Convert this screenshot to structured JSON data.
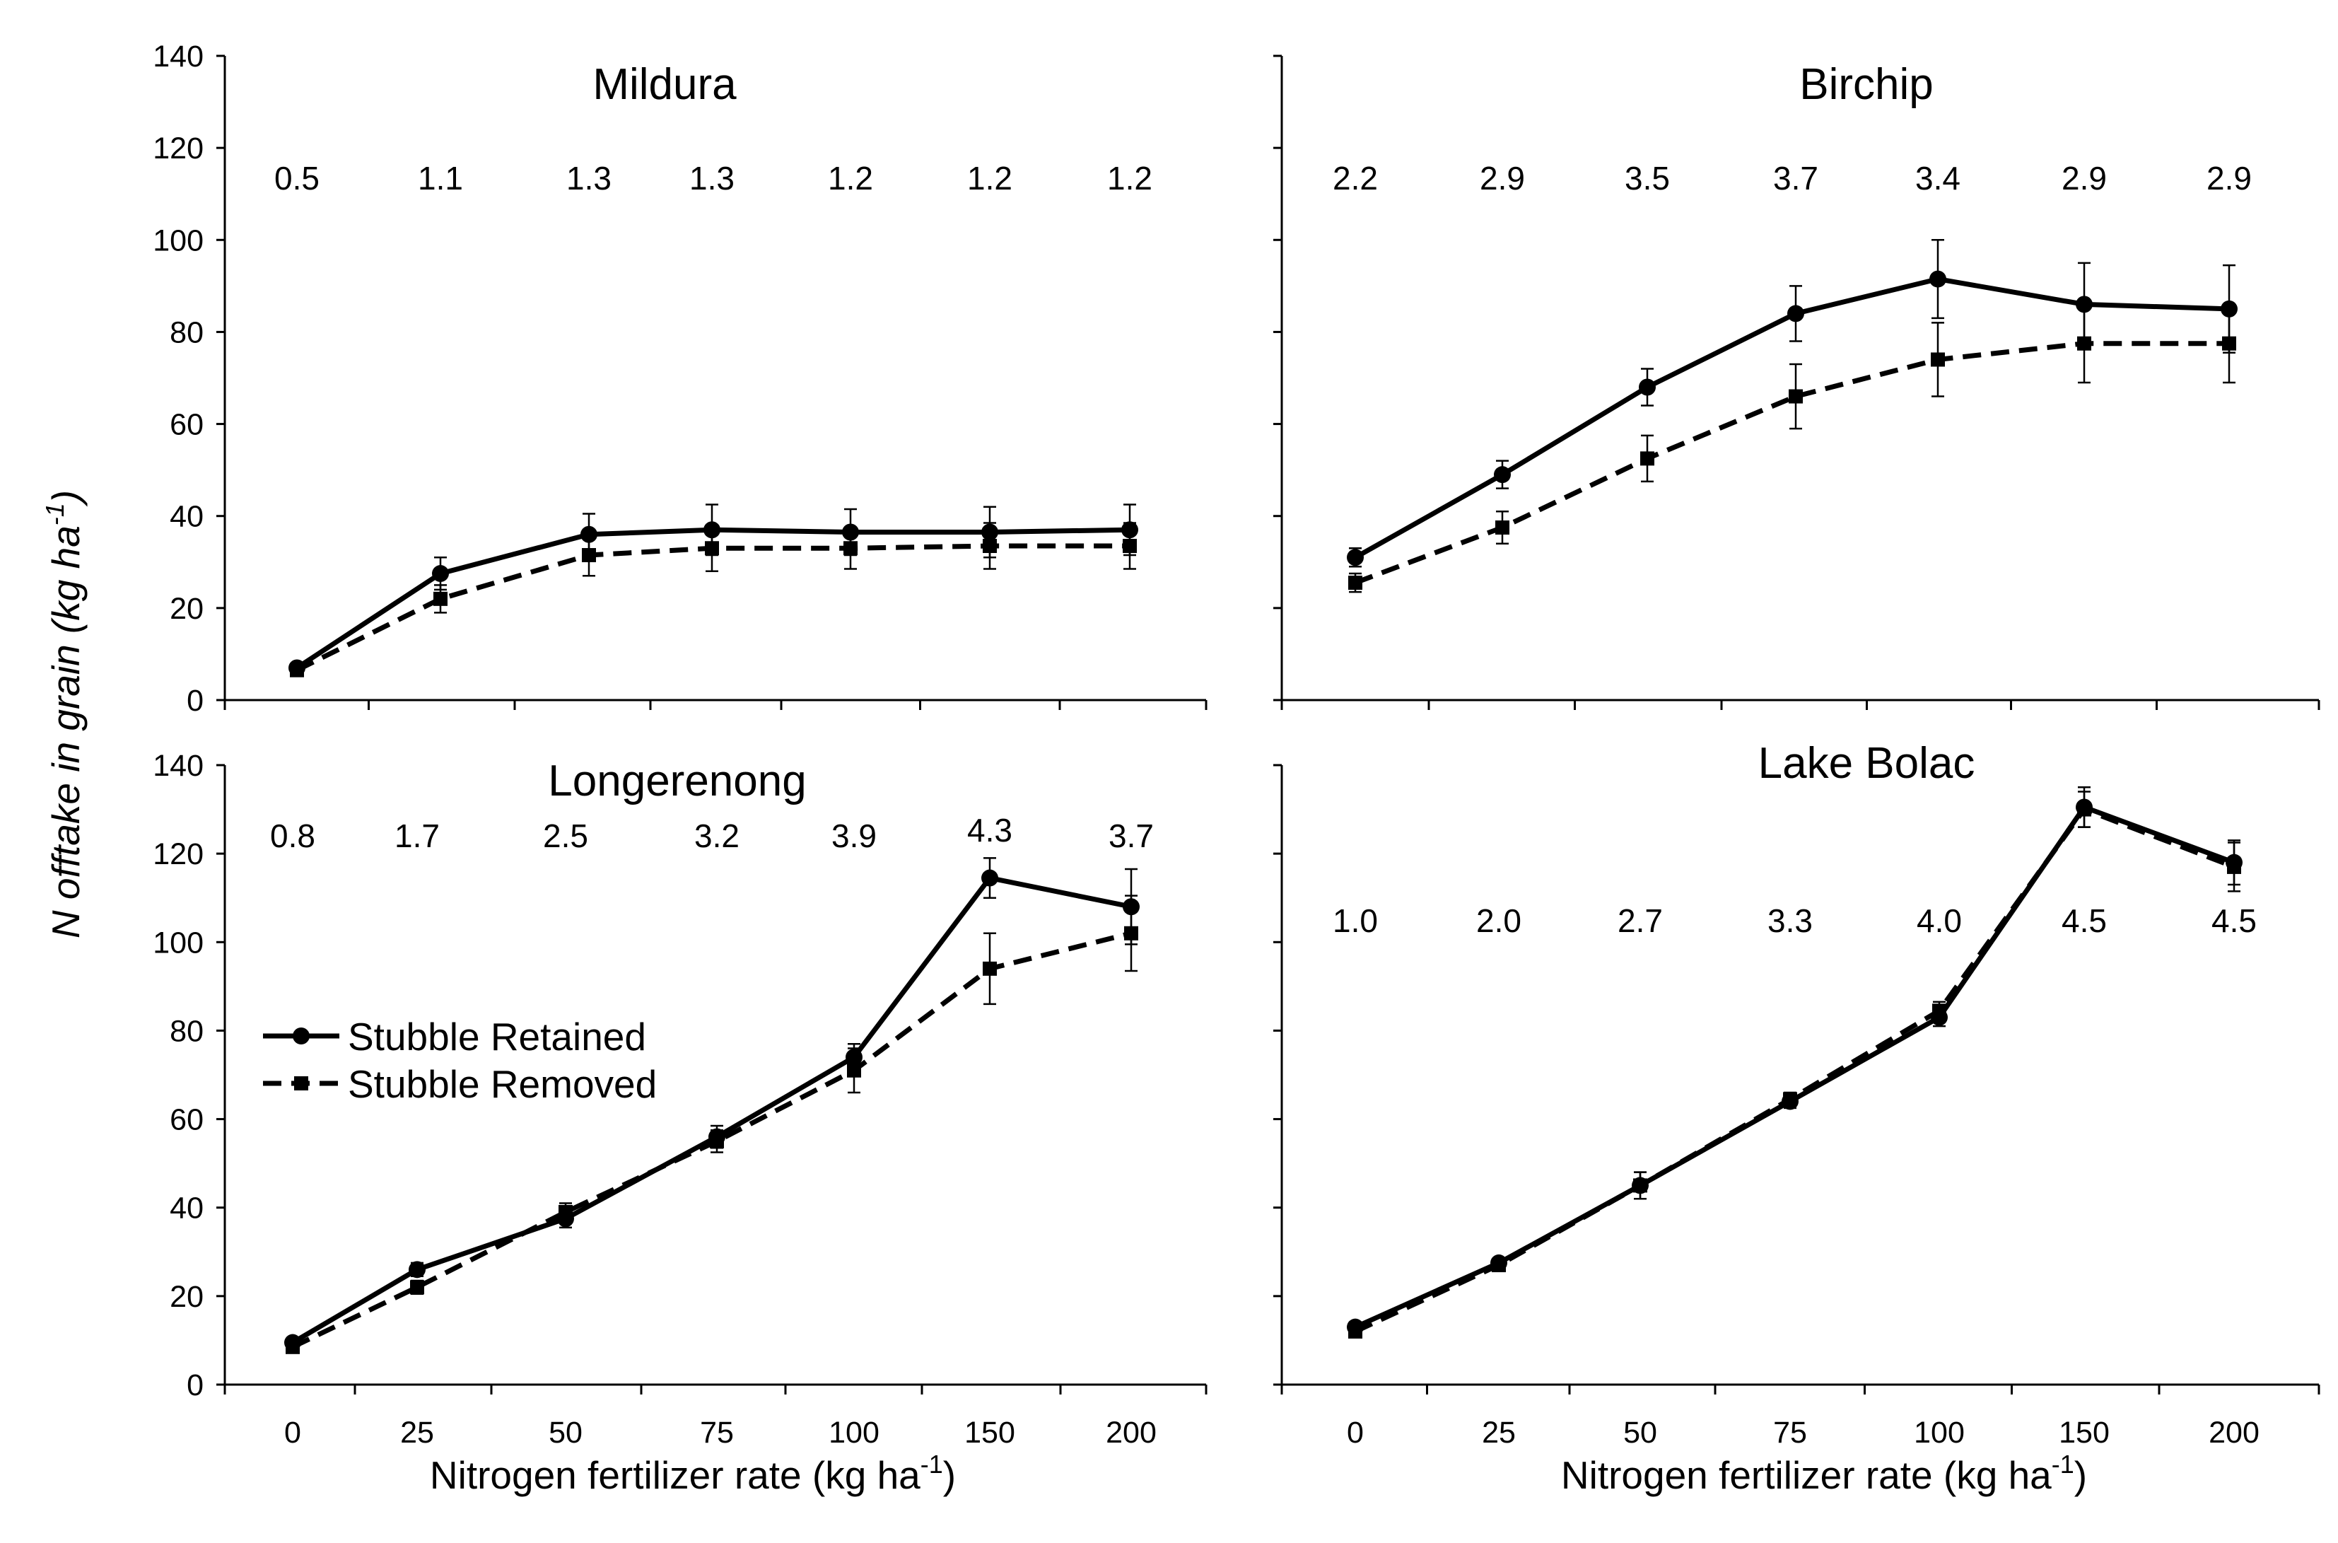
{
  "ylabel": {
    "main": "N offtake in grain (kg ha",
    "sup": "-1",
    "close": ")"
  },
  "xlabel": {
    "main": "Nitrogen  fertilizer  rate  (kg  ha",
    "sup": "-1",
    "close": ")"
  },
  "legend": {
    "retained": "Stubble Retained",
    "removed": "Stubble Removed"
  },
  "chart_data": [
    {
      "type": "line",
      "title": "Mildura",
      "categories": [
        "0",
        "25",
        "50",
        "75",
        "100",
        "150",
        "200"
      ],
      "ylim": [
        0,
        140
      ],
      "yticks": [
        "0",
        "20",
        "40",
        "60",
        "80",
        "100",
        "120",
        "140"
      ],
      "annotations": [
        "0.5",
        "1.1",
        "1.3",
        "1.3",
        "1.2",
        "1.2",
        "1.2"
      ],
      "series": [
        {
          "name": "Stubble Retained",
          "values": [
            7,
            27.5,
            36,
            37,
            36.5,
            36.5,
            37
          ],
          "errors": [
            1,
            3.5,
            4.5,
            5.5,
            5,
            5.5,
            5.5
          ]
        },
        {
          "name": "Stubble Removed",
          "values": [
            6.5,
            22,
            31.5,
            33,
            33,
            33.5,
            33.5
          ],
          "errors": [
            1,
            3,
            4.5,
            5,
            4.5,
            5,
            5
          ]
        }
      ]
    },
    {
      "type": "line",
      "title": "Birchip",
      "categories": [
        "0",
        "25",
        "50",
        "75",
        "100",
        "150",
        "200"
      ],
      "ylim": [
        0,
        140
      ],
      "yticks": [],
      "annotations": [
        "2.2",
        "2.9",
        "3.5",
        "3.7",
        "3.4",
        "2.9",
        "2.9"
      ],
      "series": [
        {
          "name": "Stubble Retained",
          "values": [
            31,
            49,
            68,
            84,
            91.5,
            86,
            85
          ],
          "errors": [
            2,
            3,
            4,
            6,
            8.5,
            9,
            9.5
          ]
        },
        {
          "name": "Stubble Removed",
          "values": [
            25.5,
            37.5,
            52.5,
            66,
            74,
            77.5,
            77.5
          ],
          "errors": [
            2,
            3.5,
            5,
            7,
            8,
            8.5,
            8.5
          ]
        }
      ]
    },
    {
      "type": "line",
      "title": "Longerenong",
      "categories": [
        "0",
        "25",
        "50",
        "75",
        "100",
        "150",
        "200"
      ],
      "ylim": [
        0,
        140
      ],
      "yticks": [
        "0",
        "20",
        "40",
        "60",
        "80",
        "100",
        "120",
        "140"
      ],
      "annotations": [
        "0.8",
        "1.7",
        "2.5",
        "3.2",
        "3.9",
        "4.3",
        "3.7"
      ],
      "series": [
        {
          "name": "Stubble Retained",
          "values": [
            9.5,
            26,
            37.5,
            56,
            74,
            114.5,
            108
          ],
          "errors": [
            1,
            1.5,
            2,
            2.5,
            3,
            4.5,
            8.5
          ]
        },
        {
          "name": "Stubble Removed",
          "values": [
            8.5,
            22,
            39,
            55,
            71,
            94,
            102
          ],
          "errors": [
            1,
            1.5,
            2,
            2.5,
            5,
            8,
            8.5
          ]
        }
      ]
    },
    {
      "type": "line",
      "title": "Lake Bolac",
      "categories": [
        "0",
        "25",
        "50",
        "75",
        "100",
        "150",
        "200"
      ],
      "ylim": [
        0,
        140
      ],
      "yticks": [],
      "annotations": [
        "1.0",
        "2.0",
        "2.7",
        "3.3",
        "4.0",
        "4.5",
        "4.5"
      ],
      "series": [
        {
          "name": "Stubble Retained",
          "values": [
            13,
            27.5,
            45,
            64,
            83,
            130.5,
            118
          ],
          "errors": [
            1,
            1,
            3,
            1.5,
            2,
            4.5,
            5
          ]
        },
        {
          "name": "Stubble Removed",
          "values": [
            12,
            27,
            45,
            64.5,
            84.5,
            130,
            117
          ],
          "errors": [
            1,
            1,
            3,
            1.5,
            2,
            4,
            5.5
          ]
        }
      ]
    }
  ]
}
